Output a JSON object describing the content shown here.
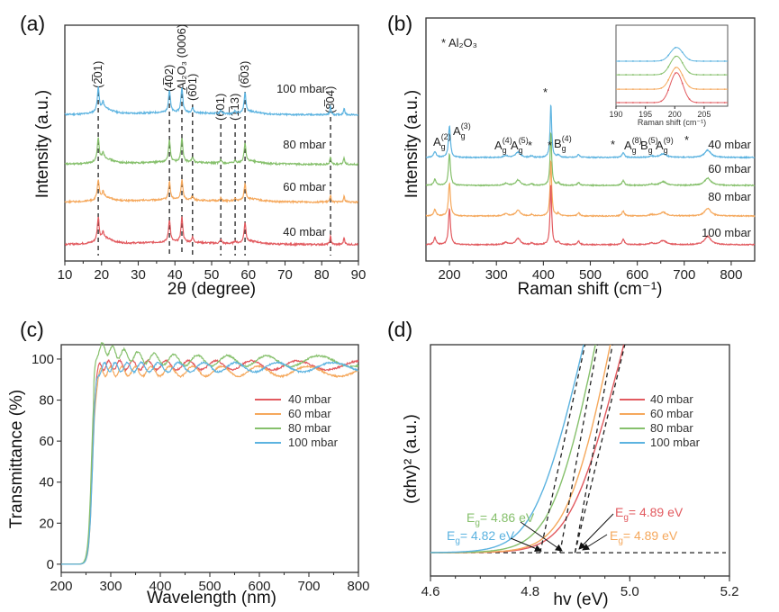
{
  "colors": {
    "40 mbar": "#e25a5f",
    "60 mbar": "#f5a85c",
    "80 mbar": "#86c06c",
    "100 mbar": "#5cb3e0"
  },
  "chart_data": [
    {
      "panel": "(a)",
      "type": "line",
      "xlabel": "2θ (degree)",
      "ylabel": "Intensity (a.u.)",
      "xlim": [
        10,
        90
      ],
      "xticks": [
        "10",
        "20",
        "30",
        "40",
        "50",
        "60",
        "70",
        "80",
        "90"
      ],
      "series": [
        {
          "name": "100 mbar",
          "offset": 6.2,
          "scale": 1.0
        },
        {
          "name": "80 mbar",
          "offset": 4.1,
          "scale": 0.95
        },
        {
          "name": "60 mbar",
          "offset": 2.5,
          "scale": 0.8
        },
        {
          "name": "40 mbar",
          "offset": 0.7,
          "scale": 1.0
        }
      ],
      "peaks": [
        [
          19.1,
          1.0
        ],
        [
          20.4,
          0.3
        ],
        [
          38.5,
          0.95
        ],
        [
          41.9,
          1.05
        ],
        [
          44.8,
          0.2
        ],
        [
          52.5,
          0.15
        ],
        [
          56.4,
          0.1
        ],
        [
          59.1,
          0.85
        ],
        [
          82.4,
          0.35
        ],
        [
          86.1,
          0.3
        ]
      ],
      "reflections": [
        {
          "x": 19.1,
          "label": "(2̅01)"
        },
        {
          "x": 38.5,
          "label": "(4̅02)"
        },
        {
          "x": 41.9,
          "label": "Al₂O₃ (0006)"
        },
        {
          "x": 44.8,
          "label": "(6̅01)"
        },
        {
          "x": 52.5,
          "label": "(601)"
        },
        {
          "x": 56.4,
          "label": "(1̅13)"
        },
        {
          "x": 59.1,
          "label": "(6̅03)"
        },
        {
          "x": 82.4,
          "label": "(8̅04)"
        }
      ]
    },
    {
      "panel": "(b)",
      "type": "line",
      "xlabel": "Raman shift (cm⁻¹)",
      "ylabel": "Intensity (a.u.)",
      "xlim": [
        150,
        850
      ],
      "xticks": [
        "200",
        "300",
        "400",
        "500",
        "600",
        "700",
        "800"
      ],
      "legend_note": "* Al₂O₃",
      "series": [
        {
          "name": "40 mbar",
          "color_key": "100 mbar",
          "offset": 4.26,
          "scale": 1.0
        },
        {
          "name": "60 mbar",
          "color_key": "80 mbar",
          "offset": 3.11,
          "scale": 1.0
        },
        {
          "name": "80 mbar",
          "color_key": "60 mbar",
          "offset": 1.85,
          "scale": 1.05
        },
        {
          "name": "100 mbar",
          "color_key": "40 mbar",
          "offset": 0.67,
          "scale": 1.15
        }
      ],
      "peaks": [
        [
          169,
          0.25,
          3
        ],
        [
          200,
          1.3,
          2.5
        ],
        [
          320,
          0.08,
          5
        ],
        [
          346,
          0.22,
          6
        ],
        [
          375,
          0.06,
          3
        ],
        [
          416,
          2.2,
          2
        ],
        [
          432,
          0.1,
          3
        ],
        [
          475,
          0.12,
          3
        ],
        [
          570,
          0.2,
          3
        ],
        [
          630,
          0.05,
          6
        ],
        [
          655,
          0.15,
          8
        ],
        [
          750,
          0.3,
          8
        ]
      ],
      "modes": [
        {
          "main": "A",
          "sub": "g",
          "sup": "(2)"
        },
        {
          "main": "A",
          "sub": "g",
          "sup": "(3)"
        },
        {
          "main": "A",
          "sub": "g",
          "sup": "(4)"
        },
        {
          "main": "A",
          "sub": "g",
          "sup": "(5)"
        },
        {
          "main": "B",
          "sub": "g",
          "sup": "(4)"
        },
        {
          "main": "A",
          "sub": "g",
          "sup": "(8)"
        },
        {
          "main": "B",
          "sub": "g",
          "sup": "(5)"
        },
        {
          "main": "A",
          "sub": "g",
          "sup": "(9)"
        }
      ],
      "al2o3_marker": "*",
      "inset": {
        "xlabel": "Raman shift (cm⁻¹)",
        "xlim": [
          190,
          209
        ],
        "xticks": [
          "190",
          "195",
          "200",
          "205"
        ],
        "center": 200.3,
        "series": [
          {
            "color_key": "100 mbar",
            "offset": 2.78,
            "height": 0.85
          },
          {
            "color_key": "80 mbar",
            "offset": 1.94,
            "height": 1.15
          },
          {
            "color_key": "60 mbar",
            "offset": 1.05,
            "height": 1.35
          },
          {
            "color_key": "40 mbar",
            "offset": 0.22,
            "height": 1.85
          }
        ]
      }
    },
    {
      "panel": "(c)",
      "type": "line",
      "xlabel": "Wavelength (nm)",
      "ylabel": "Transmittance (%)",
      "xlim": [
        200,
        800
      ],
      "ylim": [
        -4,
        107
      ],
      "xticks": [
        "200",
        "300",
        "400",
        "500",
        "600",
        "700",
        "800"
      ],
      "yticks": [
        "0",
        "20",
        "40",
        "60",
        "80",
        "100"
      ],
      "series": [
        {
          "name": "40 mbar",
          "plateau": 97,
          "onset_nm": 262,
          "fringe_amp": 2.2
        },
        {
          "name": "60 mbar",
          "plateau": 94,
          "onset_nm": 263,
          "fringe_amp": 2.4
        },
        {
          "name": "80 mbar",
          "plateau": 99,
          "onset_nm": 261,
          "fringe_amp": 2.6
        },
        {
          "name": "100 mbar",
          "plateau": 96,
          "onset_nm": 263,
          "fringe_amp": 2.3
        }
      ]
    },
    {
      "panel": "(d)",
      "type": "line",
      "xlabel": "hv (eV)",
      "ylabel": "(αhv)² (a.u.)",
      "xlim": [
        4.6,
        5.2
      ],
      "xticks": [
        "4.6",
        "4.8",
        "5.0",
        "5.2"
      ],
      "series": [
        {
          "name": "40 mbar",
          "Eg": 4.89,
          "slope": 10.0,
          "label_main": "E",
          "label_sub": "g",
          "label_rest": "= 4.89 eV"
        },
        {
          "name": "60 mbar",
          "Eg": 4.89,
          "slope": 13.3,
          "label_main": "E",
          "label_sub": "g",
          "label_rest": "= 4.89 eV"
        },
        {
          "name": "80 mbar",
          "Eg": 4.86,
          "slope": 13.3,
          "label_main": "E",
          "label_sub": "g",
          "label_rest": "= 4.86 eV"
        },
        {
          "name": "100 mbar",
          "Eg": 4.82,
          "slope": 11.1,
          "label_main": "E",
          "label_sub": "g",
          "label_rest": "= 4.82 eV"
        }
      ]
    }
  ]
}
